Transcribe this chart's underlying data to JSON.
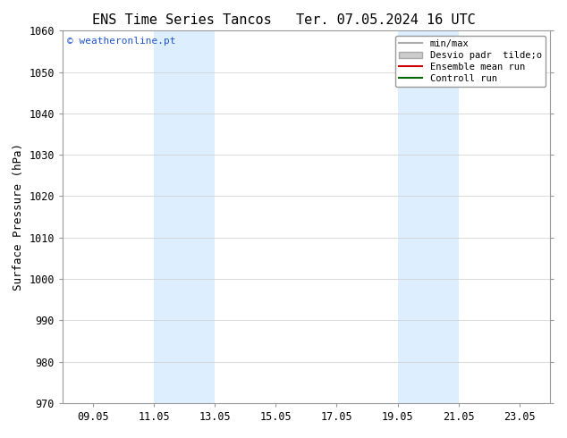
{
  "title_left": "ENS Time Series Tancos",
  "title_right": "Ter. 07.05.2024 16 UTC",
  "ylabel": "Surface Pressure (hPa)",
  "ylim": [
    970,
    1060
  ],
  "yticks": [
    970,
    980,
    990,
    1000,
    1010,
    1020,
    1030,
    1040,
    1050,
    1060
  ],
  "xtick_labels": [
    "09.05",
    "11.05",
    "13.05",
    "15.05",
    "17.05",
    "19.05",
    "21.05",
    "23.05"
  ],
  "xtick_positions": [
    1,
    3,
    5,
    7,
    9,
    11,
    13,
    15
  ],
  "shaded_bands": [
    {
      "x_start": 3,
      "x_end": 5
    },
    {
      "x_start": 11,
      "x_end": 13
    }
  ],
  "shaded_color": "#ddeeff",
  "watermark_text": "© weatheronline.pt",
  "watermark_color": "#2255cc",
  "legend_items": [
    {
      "label": "min/max",
      "color": "#aaaaaa",
      "lw": 1.5,
      "type": "line"
    },
    {
      "label": "Desvio padr  tilde;o",
      "color": "#cccccc",
      "lw": 8,
      "type": "patch"
    },
    {
      "label": "Ensemble mean run",
      "color": "#cc0000",
      "lw": 1.5,
      "type": "line"
    },
    {
      "label": "Controll run",
      "color": "#006600",
      "lw": 1.5,
      "type": "line"
    }
  ],
  "bg_color": "#ffffff",
  "grid_color": "#cccccc",
  "xmin": 0,
  "xmax": 16,
  "title_fontsize": 11,
  "axis_fontsize": 9,
  "tick_fontsize": 8.5
}
